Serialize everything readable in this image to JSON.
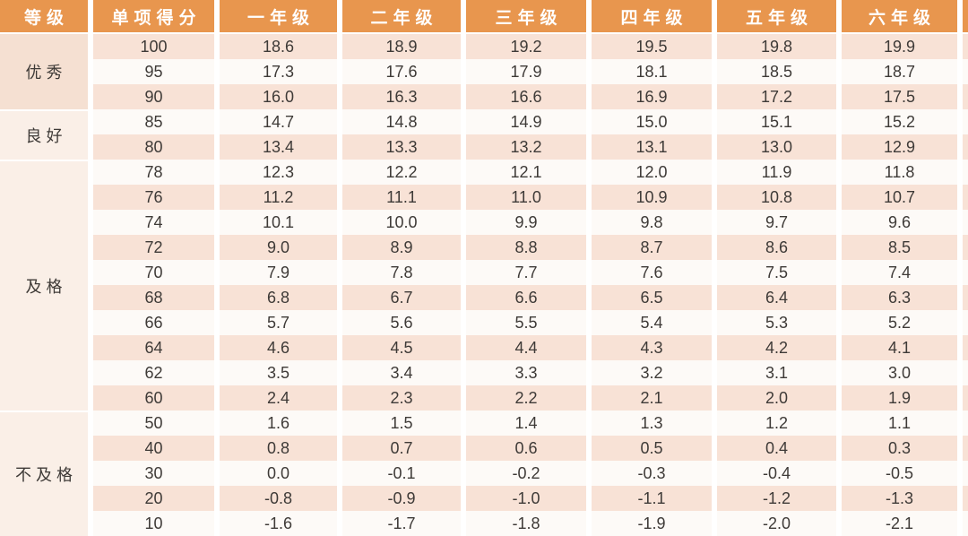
{
  "table": {
    "columns": [
      "等级",
      "单项得分",
      "一年级",
      "二年级",
      "三年级",
      "四年级",
      "五年级",
      "六年级"
    ],
    "groups": [
      {
        "label": "优秀",
        "span": 3
      },
      {
        "label": "良好",
        "span": 2
      },
      {
        "label": "及格",
        "span": 10
      },
      {
        "label": "不及格",
        "span": 5
      }
    ],
    "rows": [
      {
        "score": "100",
        "values": [
          "18.6",
          "18.9",
          "19.2",
          "19.5",
          "19.8",
          "19.9"
        ]
      },
      {
        "score": "95",
        "values": [
          "17.3",
          "17.6",
          "17.9",
          "18.1",
          "18.5",
          "18.7"
        ]
      },
      {
        "score": "90",
        "values": [
          "16.0",
          "16.3",
          "16.6",
          "16.9",
          "17.2",
          "17.5"
        ]
      },
      {
        "score": "85",
        "values": [
          "14.7",
          "14.8",
          "14.9",
          "15.0",
          "15.1",
          "15.2"
        ]
      },
      {
        "score": "80",
        "values": [
          "13.4",
          "13.3",
          "13.2",
          "13.1",
          "13.0",
          "12.9"
        ]
      },
      {
        "score": "78",
        "values": [
          "12.3",
          "12.2",
          "12.1",
          "12.0",
          "11.9",
          "11.8"
        ]
      },
      {
        "score": "76",
        "values": [
          "11.2",
          "11.1",
          "11.0",
          "10.9",
          "10.8",
          "10.7"
        ]
      },
      {
        "score": "74",
        "values": [
          "10.1",
          "10.0",
          "9.9",
          "9.8",
          "9.7",
          "9.6"
        ]
      },
      {
        "score": "72",
        "values": [
          "9.0",
          "8.9",
          "8.8",
          "8.7",
          "8.6",
          "8.5"
        ]
      },
      {
        "score": "70",
        "values": [
          "7.9",
          "7.8",
          "7.7",
          "7.6",
          "7.5",
          "7.4"
        ]
      },
      {
        "score": "68",
        "values": [
          "6.8",
          "6.7",
          "6.6",
          "6.5",
          "6.4",
          "6.3"
        ]
      },
      {
        "score": "66",
        "values": [
          "5.7",
          "5.6",
          "5.5",
          "5.4",
          "5.3",
          "5.2"
        ]
      },
      {
        "score": "64",
        "values": [
          "4.6",
          "4.5",
          "4.4",
          "4.3",
          "4.2",
          "4.1"
        ]
      },
      {
        "score": "62",
        "values": [
          "3.5",
          "3.4",
          "3.3",
          "3.2",
          "3.1",
          "3.0"
        ]
      },
      {
        "score": "60",
        "values": [
          "2.4",
          "2.3",
          "2.2",
          "2.1",
          "2.0",
          "1.9"
        ]
      },
      {
        "score": "50",
        "values": [
          "1.6",
          "1.5",
          "1.4",
          "1.3",
          "1.2",
          "1.1"
        ]
      },
      {
        "score": "40",
        "values": [
          "0.8",
          "0.7",
          "0.6",
          "0.5",
          "0.4",
          "0.3"
        ]
      },
      {
        "score": "30",
        "values": [
          "0.0",
          "-0.1",
          "-0.2",
          "-0.3",
          "-0.4",
          "-0.5"
        ]
      },
      {
        "score": "20",
        "values": [
          "-0.8",
          "-0.9",
          "-1.0",
          "-1.1",
          "-1.2",
          "-1.3"
        ]
      },
      {
        "score": "10",
        "values": [
          "-1.6",
          "-1.7",
          "-1.8",
          "-1.9",
          "-2.0",
          "-2.1"
        ]
      }
    ]
  },
  "colors": {
    "header_bg": "#E8964E",
    "header_text": "#FFFFFF",
    "row_pink": "#F8E2D6",
    "row_white": "#FDFAF7",
    "group_bg_excellent": "#F5E0D2",
    "group_bg_light": "#FAEFE7",
    "body_text": "#3E3A37"
  },
  "chart_data": {
    "type": "table",
    "title": "",
    "columns": [
      "等级",
      "单项得分",
      "一年级",
      "二年级",
      "三年级",
      "四年级",
      "五年级",
      "六年级"
    ],
    "row_groups": [
      {
        "grade": "优秀",
        "scores": [
          100,
          95,
          90
        ]
      },
      {
        "grade": "良好",
        "scores": [
          85,
          80
        ]
      },
      {
        "grade": "及格",
        "scores": [
          78,
          76,
          74,
          72,
          70,
          68,
          66,
          64,
          62,
          60
        ]
      },
      {
        "grade": "不及格",
        "scores": [
          50,
          40,
          30,
          20,
          10
        ]
      }
    ],
    "rows": [
      [
        100,
        18.6,
        18.9,
        19.2,
        19.5,
        19.8,
        19.9
      ],
      [
        95,
        17.3,
        17.6,
        17.9,
        18.1,
        18.5,
        18.7
      ],
      [
        90,
        16.0,
        16.3,
        16.6,
        16.9,
        17.2,
        17.5
      ],
      [
        85,
        14.7,
        14.8,
        14.9,
        15.0,
        15.1,
        15.2
      ],
      [
        80,
        13.4,
        13.3,
        13.2,
        13.1,
        13.0,
        12.9
      ],
      [
        78,
        12.3,
        12.2,
        12.1,
        12.0,
        11.9,
        11.8
      ],
      [
        76,
        11.2,
        11.1,
        11.0,
        10.9,
        10.8,
        10.7
      ],
      [
        74,
        10.1,
        10.0,
        9.9,
        9.8,
        9.7,
        9.6
      ],
      [
        72,
        9.0,
        8.9,
        8.8,
        8.7,
        8.6,
        8.5
      ],
      [
        70,
        7.9,
        7.8,
        7.7,
        7.6,
        7.5,
        7.4
      ],
      [
        68,
        6.8,
        6.7,
        6.6,
        6.5,
        6.4,
        6.3
      ],
      [
        66,
        5.7,
        5.6,
        5.5,
        5.4,
        5.3,
        5.2
      ],
      [
        64,
        4.6,
        4.5,
        4.4,
        4.3,
        4.2,
        4.1
      ],
      [
        62,
        3.5,
        3.4,
        3.3,
        3.2,
        3.1,
        3.0
      ],
      [
        60,
        2.4,
        2.3,
        2.2,
        2.1,
        2.0,
        1.9
      ],
      [
        50,
        1.6,
        1.5,
        1.4,
        1.3,
        1.2,
        1.1
      ],
      [
        40,
        0.8,
        0.7,
        0.6,
        0.5,
        0.4,
        0.3
      ],
      [
        30,
        0.0,
        -0.1,
        -0.2,
        -0.3,
        -0.4,
        -0.5
      ],
      [
        20,
        -0.8,
        -0.9,
        -1.0,
        -1.1,
        -1.2,
        -1.3
      ],
      [
        10,
        -1.6,
        -1.7,
        -1.8,
        -1.9,
        -2.0,
        -2.1
      ]
    ]
  }
}
